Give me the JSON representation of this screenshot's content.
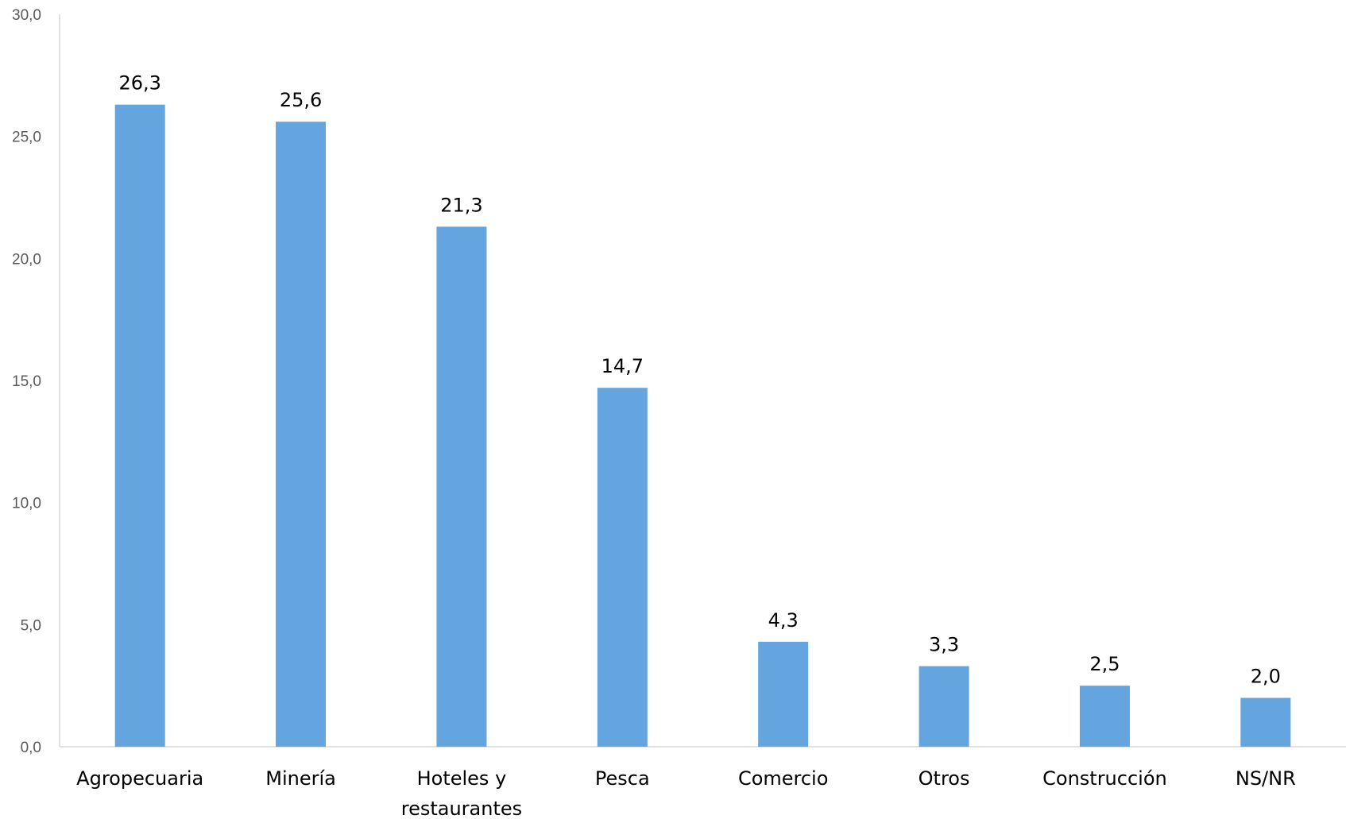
{
  "chart_data": {
    "type": "bar",
    "title": "",
    "xlabel": "",
    "ylabel": "",
    "categories": [
      [
        "Agropecuaria"
      ],
      [
        "Minería"
      ],
      [
        "Hoteles y",
        "restaurantes"
      ],
      [
        "Pesca"
      ],
      [
        "Comercio"
      ],
      [
        "Otros"
      ],
      [
        "Construcción"
      ],
      [
        "NS/NR"
      ]
    ],
    "values": [
      26.3,
      25.6,
      21.3,
      14.7,
      4.3,
      3.3,
      2.5,
      2.0
    ],
    "value_labels": [
      "26,3",
      "25,6",
      "21,3",
      "14,7",
      "4,3",
      "3,3",
      "2,5",
      "2,0"
    ],
    "ylim": [
      0,
      30
    ],
    "yticks": [
      0,
      5,
      10,
      15,
      20,
      25,
      30
    ],
    "ytick_labels": [
      "0,0",
      "5,0",
      "10,0",
      "15,0",
      "20,0",
      "25,0",
      "30,0"
    ],
    "grid": false,
    "legend": "none",
    "colors": {
      "bar": "#64A5E0",
      "axis": "#D9D9D9",
      "tick_text": "#595959",
      "label_text": "#000000"
    }
  }
}
